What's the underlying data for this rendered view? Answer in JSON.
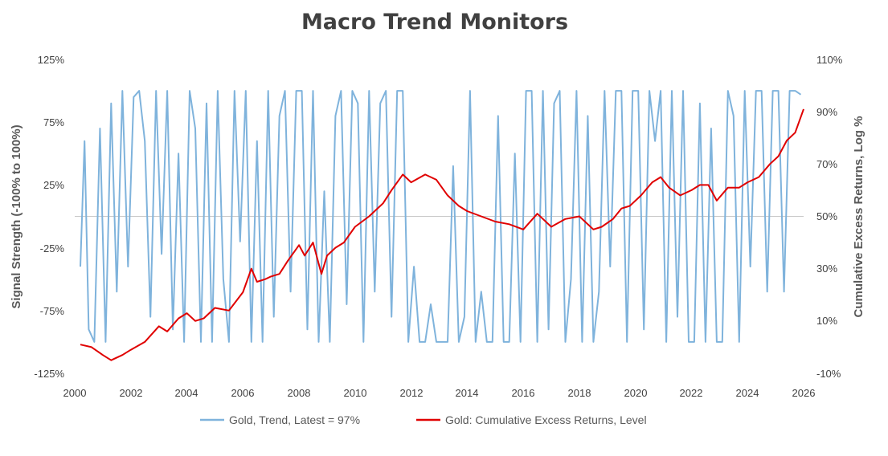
{
  "chart_data": {
    "type": "line",
    "title": "Macro Trend Monitors",
    "xlabel": "",
    "x_ticks": [
      "2000",
      "2002",
      "2004",
      "2006",
      "2008",
      "2010",
      "2012",
      "2014",
      "2016",
      "2018",
      "2020",
      "2022",
      "2024",
      "2026"
    ],
    "xlim": [
      2000,
      2026
    ],
    "y_left": {
      "label": "Signal Strength (-100% to 100%)",
      "ticks": [
        "125%",
        "75%",
        "25%",
        "-25%",
        "-75%",
        "-125%"
      ],
      "lim": [
        -125,
        125
      ]
    },
    "y_right": {
      "label": "Cumulative Excess Returns, Log %",
      "ticks": [
        "110%",
        "90%",
        "70%",
        "50%",
        "30%",
        "10%",
        "-10%"
      ],
      "lim": [
        -10,
        110
      ]
    },
    "zero_line": true,
    "grid": false,
    "legend_position": "bottom",
    "series": [
      {
        "name": "Gold, Trend, Latest = 97%",
        "color": "#7fb3dc",
        "axis": "left",
        "x": [
          2000.2,
          2000.35,
          2000.5,
          2000.7,
          2000.9,
          2001.1,
          2001.3,
          2001.5,
          2001.7,
          2001.9,
          2002.1,
          2002.3,
          2002.5,
          2002.7,
          2002.9,
          2003.1,
          2003.3,
          2003.5,
          2003.7,
          2003.9,
          2004.1,
          2004.3,
          2004.5,
          2004.7,
          2004.9,
          2005.1,
          2005.3,
          2005.5,
          2005.7,
          2005.9,
          2006.1,
          2006.3,
          2006.5,
          2006.7,
          2006.9,
          2007.1,
          2007.3,
          2007.5,
          2007.7,
          2007.9,
          2008.1,
          2008.3,
          2008.5,
          2008.7,
          2008.9,
          2009.1,
          2009.3,
          2009.5,
          2009.7,
          2009.9,
          2010.1,
          2010.3,
          2010.5,
          2010.7,
          2010.9,
          2011.1,
          2011.3,
          2011.5,
          2011.7,
          2011.9,
          2012.1,
          2012.3,
          2012.5,
          2012.7,
          2012.9,
          2013.1,
          2013.3,
          2013.5,
          2013.7,
          2013.9,
          2014.1,
          2014.3,
          2014.5,
          2014.7,
          2014.9,
          2015.1,
          2015.3,
          2015.5,
          2015.7,
          2015.9,
          2016.1,
          2016.3,
          2016.5,
          2016.7,
          2016.9,
          2017.1,
          2017.3,
          2017.5,
          2017.7,
          2017.9,
          2018.1,
          2018.3,
          2018.5,
          2018.7,
          2018.9,
          2019.1,
          2019.3,
          2019.5,
          2019.7,
          2019.9,
          2020.1,
          2020.3,
          2020.5,
          2020.7,
          2020.9,
          2021.1,
          2021.3,
          2021.5,
          2021.7,
          2021.9,
          2022.1,
          2022.3,
          2022.5,
          2022.7,
          2022.9,
          2023.1,
          2023.3,
          2023.5,
          2023.7,
          2023.9,
          2024.1,
          2024.3,
          2024.5,
          2024.7,
          2024.9,
          2025.1,
          2025.3,
          2025.5,
          2025.7,
          2025.9
        ],
        "values": [
          -40,
          60,
          -90,
          -100,
          70,
          -100,
          90,
          -60,
          100,
          -40,
          95,
          100,
          60,
          -80,
          100,
          -30,
          100,
          -90,
          50,
          -100,
          100,
          70,
          -100,
          90,
          -100,
          100,
          -50,
          -100,
          100,
          -20,
          100,
          -100,
          60,
          -100,
          100,
          -80,
          80,
          100,
          -60,
          100,
          100,
          -90,
          100,
          -100,
          20,
          -100,
          80,
          100,
          -70,
          100,
          90,
          -100,
          100,
          -60,
          90,
          100,
          -80,
          100,
          100,
          -100,
          -40,
          -100,
          -100,
          -70,
          -100,
          -100,
          -100,
          40,
          -100,
          -80,
          100,
          -100,
          -60,
          -100,
          -100,
          80,
          -100,
          -100,
          50,
          -100,
          100,
          100,
          -100,
          100,
          -90,
          90,
          100,
          -100,
          -50,
          100,
          -100,
          80,
          -100,
          -60,
          100,
          -40,
          100,
          100,
          -100,
          100,
          100,
          -90,
          100,
          60,
          100,
          -100,
          100,
          -80,
          100,
          -100,
          -100,
          90,
          -100,
          70,
          -100,
          -100,
          100,
          80,
          -100,
          100,
          -40,
          100,
          100,
          -60,
          100,
          100,
          -60,
          100,
          100,
          97
        ]
      },
      {
        "name": "Gold: Cumulative Excess Returns, Level",
        "color": "#e00000",
        "axis": "right",
        "x": [
          2000.2,
          2000.6,
          2001.0,
          2001.3,
          2001.7,
          2002.0,
          2002.5,
          2003.0,
          2003.3,
          2003.7,
          2004.0,
          2004.3,
          2004.6,
          2005.0,
          2005.5,
          2006.0,
          2006.3,
          2006.5,
          2006.8,
          2007.0,
          2007.3,
          2007.6,
          2008.0,
          2008.2,
          2008.5,
          2008.8,
          2009.0,
          2009.3,
          2009.6,
          2010.0,
          2010.5,
          2011.0,
          2011.3,
          2011.7,
          2012.0,
          2012.5,
          2012.9,
          2013.3,
          2013.7,
          2014.0,
          2014.5,
          2015.0,
          2015.5,
          2016.0,
          2016.5,
          2017.0,
          2017.5,
          2018.0,
          2018.5,
          2018.8,
          2019.2,
          2019.5,
          2019.8,
          2020.2,
          2020.6,
          2020.9,
          2021.2,
          2021.6,
          2022.0,
          2022.3,
          2022.6,
          2022.9,
          2023.3,
          2023.7,
          2024.0,
          2024.4,
          2024.8,
          2025.1,
          2025.4,
          2025.7,
          2026.0
        ],
        "values": [
          1,
          0,
          -3,
          -5,
          -3,
          -1,
          2,
          8,
          6,
          11,
          13,
          10,
          11,
          15,
          14,
          21,
          30,
          25,
          26,
          27,
          28,
          33,
          39,
          35,
          40,
          28,
          35,
          38,
          40,
          46,
          50,
          55,
          60,
          66,
          63,
          66,
          64,
          58,
          54,
          52,
          50,
          48,
          47,
          45,
          51,
          46,
          49,
          50,
          45,
          46,
          49,
          53,
          54,
          58,
          63,
          65,
          61,
          58,
          60,
          62,
          62,
          56,
          61,
          61,
          63,
          65,
          70,
          73,
          79,
          82,
          91
        ]
      }
    ]
  }
}
